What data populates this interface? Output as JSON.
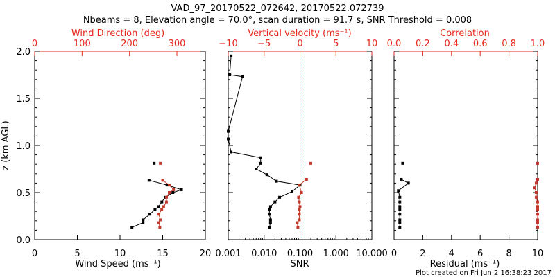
{
  "title": {
    "line1": "VAD_97_20170522_072642, 20170522.072739",
    "line2": "Nbeams = 8, Elevation angle = 70.0°, scan duration = 91.7 s, SNR Threshold = 0.008"
  },
  "footer": "Plot created on Fri Jun  2 16:38:23 2017",
  "colors": {
    "primary": "#000000",
    "secondary": "#c0392b",
    "top_axis": "#e8281e"
  },
  "chart_data": [
    {
      "type": "scatter",
      "shared_y": {
        "label": "z (km AGL)",
        "ticks": [
          "0.0",
          "0.5",
          "1.0",
          "1.5",
          "2.0"
        ],
        "ylim": [
          0.0,
          2.0
        ]
      },
      "bottom_axis": {
        "label": "Wind Speed (ms⁻¹)",
        "ticks": [
          "0",
          "5",
          "10",
          "15",
          "20"
        ],
        "xlim": [
          0,
          20
        ]
      },
      "top_axis": {
        "label": "Wind Direction (deg)",
        "ticks": [
          "0",
          "100",
          "200",
          "300"
        ],
        "xlim": [
          0,
          360
        ]
      },
      "series": [
        {
          "axis": "bottom",
          "color": "black",
          "connected": true,
          "points": [
            [
              11.4,
              0.13
            ],
            [
              12.7,
              0.18
            ],
            [
              12.7,
              0.21
            ],
            [
              13.5,
              0.27
            ],
            [
              14.1,
              0.32
            ],
            [
              14.5,
              0.35
            ],
            [
              14.9,
              0.4
            ],
            [
              15.3,
              0.45
            ],
            [
              16.2,
              0.5
            ],
            [
              17.2,
              0.53
            ],
            [
              15.5,
              0.58
            ],
            [
              13.4,
              0.63
            ]
          ]
        },
        {
          "axis": "bottom",
          "color": "black",
          "connected": false,
          "points": [
            [
              14.0,
              0.81
            ]
          ]
        },
        {
          "axis": "top",
          "color": "red",
          "connected": true,
          "points": [
            [
              264,
              0.13
            ],
            [
              262,
              0.18
            ],
            [
              265,
              0.21
            ],
            [
              262,
              0.27
            ],
            [
              268,
              0.32
            ],
            [
              272,
              0.35
            ],
            [
              278,
              0.4
            ],
            [
              278,
              0.45
            ],
            [
              284,
              0.5
            ],
            [
              293,
              0.53
            ],
            [
              284,
              0.58
            ],
            [
              270,
              0.63
            ]
          ]
        },
        {
          "axis": "top",
          "color": "red",
          "connected": false,
          "points": [
            [
              265,
              0.81
            ]
          ]
        }
      ]
    },
    {
      "type": "scatter",
      "bottom_axis": {
        "label": "SNR",
        "scale": "log",
        "ticks": [
          "0.001",
          "0.010",
          "0.100",
          "1.000",
          "10.000"
        ],
        "xlim": [
          0.001,
          10
        ]
      },
      "top_axis": {
        "label": "Vertical velocity (ms⁻¹)",
        "ticks": [
          "−10",
          "−5",
          "0",
          "5",
          "10"
        ],
        "xlim": [
          -10,
          10
        ]
      },
      "reference_line": {
        "axis": "top",
        "x": 0,
        "style": "dotted",
        "color": "red"
      },
      "series": [
        {
          "axis": "bottom",
          "color": "black",
          "connected": true,
          "points": [
            [
              0.014,
              0.13
            ],
            [
              0.015,
              0.18
            ],
            [
              0.015,
              0.21
            ],
            [
              0.014,
              0.27
            ],
            [
              0.014,
              0.32
            ],
            [
              0.015,
              0.35
            ],
            [
              0.02,
              0.4
            ],
            [
              0.027,
              0.45
            ],
            [
              0.06,
              0.51
            ],
            [
              0.1,
              0.58
            ],
            [
              0.022,
              0.62
            ],
            [
              0.012,
              0.69
            ],
            [
              0.006,
              0.75
            ],
            [
              0.008,
              0.81
            ],
            [
              0.008,
              0.87
            ],
            [
              0.0012,
              0.93
            ],
            [
              0.001,
              1.07
            ],
            [
              0.001,
              1.15
            ],
            [
              0.0025,
              1.73
            ],
            [
              0.0011,
              1.75
            ],
            [
              0.0012,
              1.95
            ]
          ]
        },
        {
          "axis": "top",
          "color": "red",
          "connected": true,
          "points": [
            [
              -0.3,
              0.13
            ],
            [
              -0.4,
              0.18
            ],
            [
              -0.1,
              0.21
            ],
            [
              -0.1,
              0.27
            ],
            [
              -0.1,
              0.32
            ],
            [
              0.0,
              0.35
            ],
            [
              -0.1,
              0.4
            ],
            [
              -0.2,
              0.45
            ],
            [
              0.2,
              0.5
            ],
            [
              -0.1,
              0.58
            ],
            [
              0.9,
              0.64
            ]
          ]
        },
        {
          "axis": "top",
          "color": "red",
          "connected": false,
          "points": [
            [
              1.5,
              0.81
            ]
          ]
        }
      ]
    },
    {
      "type": "scatter",
      "bottom_axis": {
        "label": "Residual (ms⁻¹)",
        "ticks": [
          "0",
          "2",
          "4",
          "6",
          "8",
          "10"
        ],
        "xlim": [
          0,
          10
        ]
      },
      "top_axis": {
        "label": "Correlation",
        "ticks": [
          "0.0",
          "0.2",
          "0.4",
          "0.6",
          "0.8",
          "1.0"
        ],
        "xlim": [
          0,
          1
        ]
      },
      "series": [
        {
          "axis": "bottom",
          "color": "black",
          "connected": true,
          "points": [
            [
              0.4,
              0.13
            ],
            [
              0.4,
              0.18
            ],
            [
              0.4,
              0.21
            ],
            [
              0.4,
              0.27
            ],
            [
              0.4,
              0.32
            ],
            [
              0.4,
              0.35
            ],
            [
              0.4,
              0.4
            ],
            [
              0.4,
              0.45
            ],
            [
              0.3,
              0.52
            ],
            [
              1.0,
              0.6
            ],
            [
              0.5,
              0.64
            ]
          ]
        },
        {
          "axis": "bottom",
          "color": "black",
          "connected": false,
          "points": [
            [
              0.6,
              0.81
            ]
          ]
        },
        {
          "axis": "top",
          "color": "red",
          "connected": true,
          "points": [
            [
              1.0,
              0.13
            ],
            [
              1.0,
              0.18
            ],
            [
              1.0,
              0.21
            ],
            [
              1.0,
              0.27
            ],
            [
              1.0,
              0.32
            ],
            [
              1.0,
              0.35
            ],
            [
              1.0,
              0.4
            ],
            [
              0.99,
              0.45
            ],
            [
              0.99,
              0.5
            ],
            [
              0.98,
              0.55
            ],
            [
              0.99,
              0.6
            ],
            [
              1.0,
              0.64
            ]
          ]
        },
        {
          "axis": "top",
          "color": "red",
          "connected": false,
          "points": [
            [
              1.0,
              0.81
            ]
          ]
        }
      ]
    }
  ]
}
